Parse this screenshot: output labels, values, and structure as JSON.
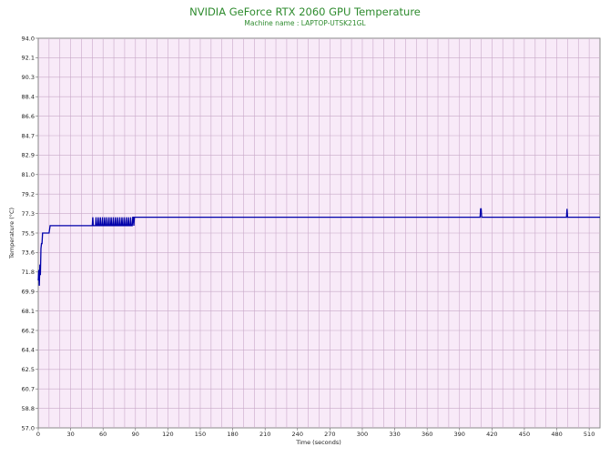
{
  "chart_data": {
    "type": "line",
    "title": "NVIDIA GeForce RTX 2060 GPU Temperature",
    "subtitle": "Machine name : LAPTOP-UTSK21GL",
    "xlabel": "Time (seconds)",
    "ylabel": "Temperature (°C)",
    "xlim": [
      0,
      520
    ],
    "ylim": [
      57.0,
      94.0
    ],
    "x_ticks": [
      "0",
      "30",
      "60",
      "90",
      "120",
      "150",
      "180",
      "210",
      "240",
      "270",
      "300",
      "330",
      "360",
      "390",
      "420",
      "450",
      "480",
      "510"
    ],
    "y_ticks": [
      "94.0",
      "92.1",
      "90.3",
      "88.4",
      "86.6",
      "84.7",
      "82.9",
      "81.0",
      "79.2",
      "77.3",
      "75.5",
      "73.6",
      "71.8",
      "69.9",
      "68.1",
      "66.2",
      "64.4",
      "62.5",
      "60.7",
      "58.8",
      "57.0"
    ],
    "grid": true,
    "series": [
      {
        "color": "#0000aa",
        "points": [
          [
            0,
            71.0
          ],
          [
            0.5,
            72.0
          ],
          [
            1,
            70.5
          ],
          [
            1.5,
            72.5
          ],
          [
            2,
            71.5
          ],
          [
            2.5,
            74.0
          ],
          [
            3,
            74.5
          ],
          [
            3.5,
            74.5
          ],
          [
            4,
            75.5
          ],
          [
            9,
            75.5
          ],
          [
            10,
            75.5
          ],
          [
            11,
            76.2
          ],
          [
            50,
            76.2
          ],
          [
            50.5,
            77.0
          ],
          [
            51,
            76.2
          ],
          [
            53,
            76.2
          ],
          [
            53.5,
            77.0
          ],
          [
            54,
            76.2
          ],
          [
            55,
            76.2
          ],
          [
            55.5,
            77.0
          ],
          [
            56,
            76.2
          ],
          [
            57,
            76.2
          ],
          [
            57.5,
            77.0
          ],
          [
            58,
            76.2
          ],
          [
            59,
            76.2
          ],
          [
            59.5,
            77.0
          ],
          [
            60,
            76.2
          ],
          [
            61,
            76.2
          ],
          [
            61.5,
            77.0
          ],
          [
            62,
            76.2
          ],
          [
            63,
            76.2
          ],
          [
            63.5,
            77.0
          ],
          [
            64,
            76.2
          ],
          [
            65,
            76.2
          ],
          [
            65.5,
            77.0
          ],
          [
            66,
            76.2
          ],
          [
            67,
            76.2
          ],
          [
            67.5,
            77.0
          ],
          [
            68,
            76.2
          ],
          [
            69,
            76.2
          ],
          [
            69.5,
            77.0
          ],
          [
            70,
            76.2
          ],
          [
            71,
            76.2
          ],
          [
            71.5,
            77.0
          ],
          [
            72,
            76.2
          ],
          [
            73,
            76.2
          ],
          [
            73.5,
            77.0
          ],
          [
            74,
            76.2
          ],
          [
            75,
            76.2
          ],
          [
            75.5,
            77.0
          ],
          [
            76,
            76.2
          ],
          [
            77,
            76.2
          ],
          [
            77.5,
            77.0
          ],
          [
            78,
            76.2
          ],
          [
            79,
            76.2
          ],
          [
            79.5,
            77.0
          ],
          [
            80,
            76.2
          ],
          [
            81,
            76.2
          ],
          [
            81.5,
            77.0
          ],
          [
            82,
            76.2
          ],
          [
            83,
            76.2
          ],
          [
            83.5,
            77.0
          ],
          [
            84,
            76.2
          ],
          [
            85,
            76.2
          ],
          [
            85.5,
            77.0
          ],
          [
            86,
            76.2
          ],
          [
            87,
            76.2
          ],
          [
            87.5,
            77.0
          ],
          [
            88,
            77.0
          ],
          [
            88.5,
            76.2
          ],
          [
            89,
            77.0
          ],
          [
            90,
            77.0
          ],
          [
            409,
            77.0
          ],
          [
            409.5,
            77.8
          ],
          [
            410,
            77.8
          ],
          [
            410.5,
            77.0
          ],
          [
            489,
            77.0
          ],
          [
            489.5,
            77.8
          ],
          [
            490,
            77.0
          ],
          [
            520,
            77.0
          ]
        ]
      }
    ]
  }
}
